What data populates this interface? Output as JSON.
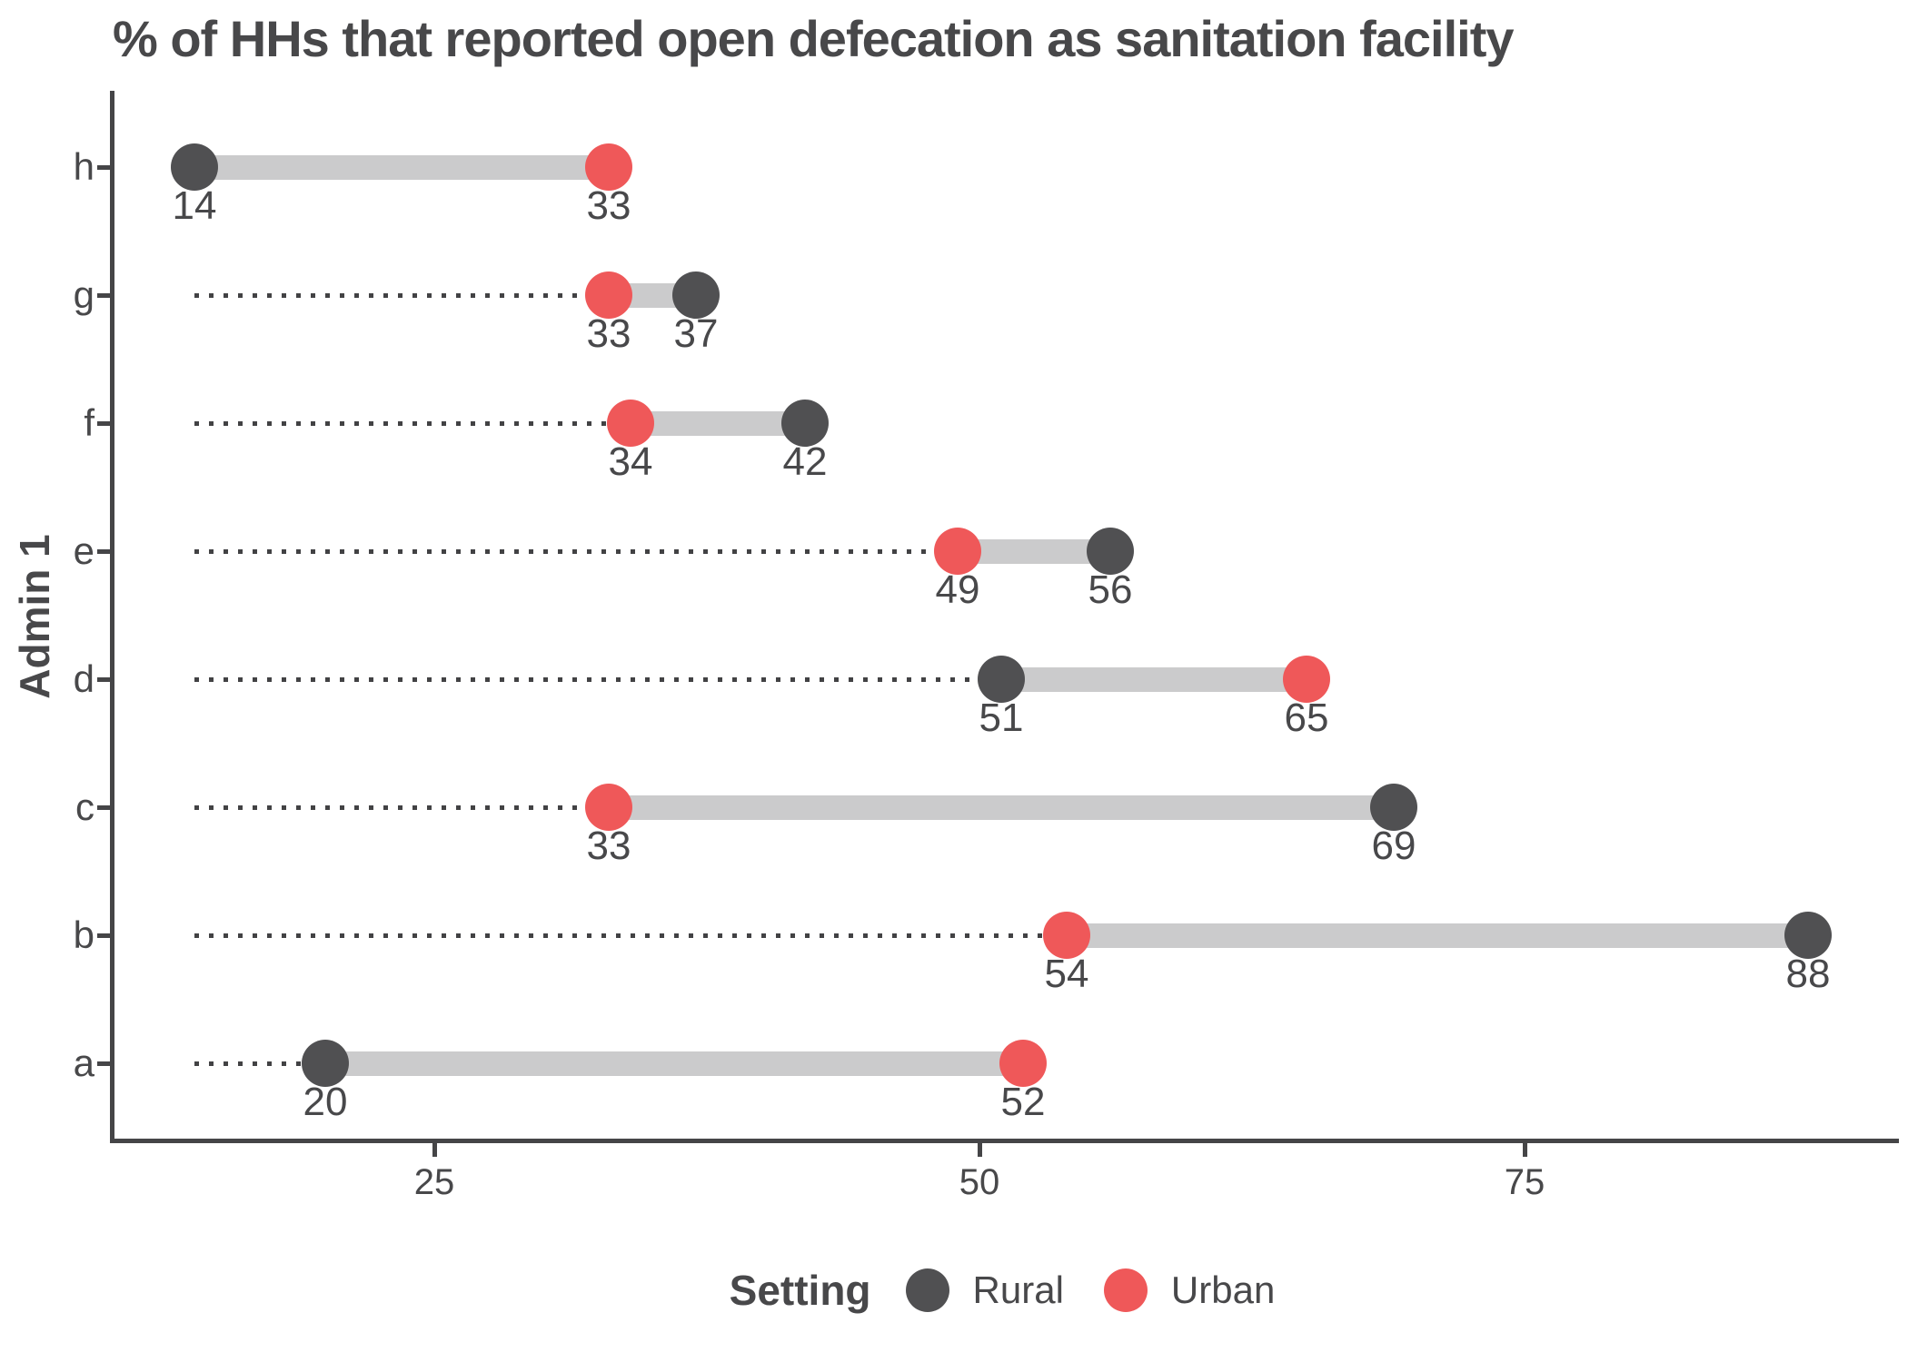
{
  "title": "% of HHs that reported open defecation as sanitation facility",
  "y_axis_title": "Admin 1",
  "colors": {
    "rural": "#505052",
    "urban": "#EF5859",
    "bar": "#CBCBCC",
    "guide": "#424244",
    "axis": "#454547",
    "text": "#48484A"
  },
  "legend": {
    "title": "Setting",
    "items": [
      {
        "label": "Rural",
        "color_key": "rural"
      },
      {
        "label": "Urban",
        "color_key": "urban"
      }
    ]
  },
  "chart_data": {
    "type": "dumbbell",
    "title": "% of HHs that reported open defecation as sanitation facility",
    "ylabel": "Admin 1",
    "xlabel": "",
    "categories": [
      "h",
      "g",
      "f",
      "e",
      "d",
      "c",
      "b",
      "a"
    ],
    "series": [
      {
        "name": "Rural",
        "values": [
          14,
          37,
          42,
          56,
          51,
          69,
          88,
          20
        ]
      },
      {
        "name": "Urban",
        "values": [
          33,
          33,
          34,
          49,
          65,
          33,
          54,
          52
        ]
      }
    ],
    "x_ticks": [
      25,
      50,
      75
    ],
    "xlim": [
      10,
      91
    ],
    "guide_origin": 14,
    "grid": false,
    "legend_position": "bottom"
  }
}
